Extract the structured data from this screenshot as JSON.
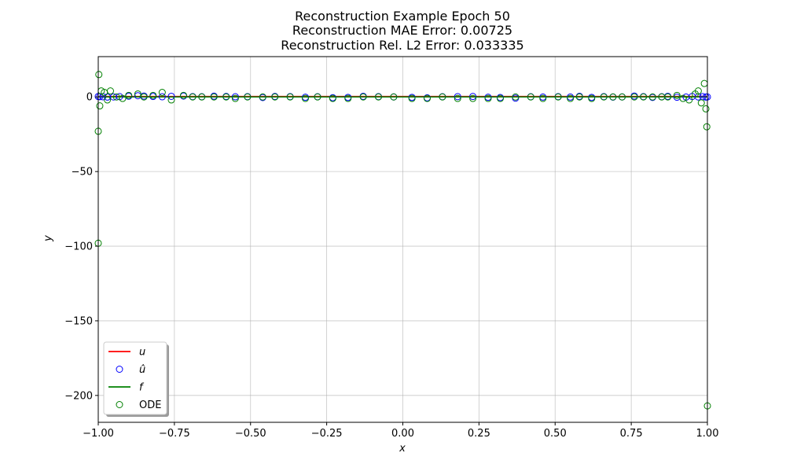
{
  "chart_data": {
    "type": "scatter",
    "title_lines": [
      "Reconstruction Example Epoch 50",
      "Reconstruction MAE Error: 0.00725",
      "Reconstruction Rel. L2 Error: 0.033335"
    ],
    "xlabel": "x",
    "ylabel": "y",
    "xlim": [
      -1.0,
      1.0
    ],
    "ylim": [
      -218,
      27
    ],
    "x_ticks": [
      -1.0,
      -0.75,
      -0.5,
      -0.25,
      0.0,
      0.25,
      0.5,
      0.75,
      1.0
    ],
    "x_tick_labels": [
      "−1.00",
      "−0.75",
      "−0.50",
      "−0.25",
      "0.00",
      "0.25",
      "0.50",
      "0.75",
      "1.00"
    ],
    "y_ticks": [
      0,
      -50,
      -100,
      -150,
      -200
    ],
    "y_tick_labels": [
      "0",
      "−50",
      "−100",
      "−150",
      "−200"
    ],
    "grid": true,
    "legend_position": "lower-left",
    "legend": [
      {
        "label": "u",
        "kind": "line",
        "color": "#ff0000"
      },
      {
        "label": "û",
        "kind": "marker",
        "color": "#0000ff"
      },
      {
        "label": "f",
        "kind": "line",
        "color": "#008000"
      },
      {
        "label": "ODE",
        "kind": "marker",
        "color": "#008000"
      }
    ],
    "series": [
      {
        "name": "u",
        "kind": "line",
        "color": "#ff0000",
        "x": [
          -1.0,
          1.0
        ],
        "y": [
          0.3,
          0.3
        ]
      },
      {
        "name": "f",
        "kind": "line",
        "color": "#008000",
        "x": [
          -1.0,
          1.0
        ],
        "y": [
          0.0,
          0.0
        ]
      },
      {
        "name": "û",
        "kind": "scatter",
        "color": "#0000ff",
        "x": [
          -1.0,
          -0.995,
          -0.985,
          -0.97,
          -0.95,
          -0.93,
          -0.9,
          -0.87,
          -0.85,
          -0.82,
          -0.79,
          -0.76,
          -0.72,
          -0.69,
          -0.66,
          -0.62,
          -0.58,
          -0.55,
          -0.51,
          -0.46,
          -0.42,
          -0.37,
          -0.32,
          -0.28,
          -0.23,
          -0.18,
          -0.13,
          -0.08,
          -0.03,
          0.03,
          0.08,
          0.13,
          0.18,
          0.23,
          0.28,
          0.32,
          0.37,
          0.42,
          0.46,
          0.51,
          0.55,
          0.58,
          0.62,
          0.66,
          0.69,
          0.72,
          0.76,
          0.79,
          0.82,
          0.85,
          0.87,
          0.9,
          0.93,
          0.95,
          0.97,
          0.985,
          0.995,
          1.0
        ],
        "y": [
          0.3,
          0.2,
          0.1,
          -0.1,
          0.0,
          0.2,
          0.5,
          0.8,
          0.6,
          0.3,
          0.1,
          0.4,
          0.6,
          0.2,
          0.1,
          0.5,
          0.3,
          0.1,
          0.2,
          -0.4,
          0.3,
          0.2,
          -0.2,
          0.1,
          -0.5,
          -0.3,
          0.4,
          0.2,
          0.0,
          -0.3,
          -0.6,
          0.1,
          0.2,
          0.3,
          -0.2,
          -0.4,
          -0.8,
          0.1,
          -0.1,
          0.2,
          -0.1,
          0.4,
          -0.3,
          0.2,
          -0.1,
          0.0,
          0.6,
          0.2,
          -0.3,
          0.1,
          0.4,
          -0.2,
          -0.1,
          0.3,
          0.0,
          0.2,
          -0.1,
          0.0
        ]
      },
      {
        "name": "ODE",
        "kind": "scatter",
        "color": "#008000",
        "x": [
          -1.0,
          -1.0,
          -0.998,
          -0.995,
          -0.99,
          -0.98,
          -0.97,
          -0.96,
          -0.94,
          -0.92,
          -0.9,
          -0.87,
          -0.85,
          -0.82,
          -0.79,
          -0.76,
          -0.72,
          -0.69,
          -0.66,
          -0.62,
          -0.58,
          -0.55,
          -0.51,
          -0.46,
          -0.42,
          -0.37,
          -0.32,
          -0.28,
          -0.23,
          -0.18,
          -0.13,
          -0.08,
          -0.03,
          0.03,
          0.08,
          0.13,
          0.18,
          0.23,
          0.28,
          0.32,
          0.37,
          0.42,
          0.46,
          0.51,
          0.55,
          0.58,
          0.62,
          0.66,
          0.69,
          0.72,
          0.76,
          0.79,
          0.82,
          0.85,
          0.87,
          0.9,
          0.92,
          0.94,
          0.96,
          0.97,
          0.98,
          0.99,
          0.995,
          0.998,
          1.0
        ],
        "y": [
          -98,
          -23,
          15,
          -6,
          4,
          3,
          -2,
          4,
          0,
          -1,
          1,
          2,
          0,
          1,
          3,
          -2,
          1,
          0,
          0,
          0,
          0,
          -1,
          0,
          0,
          0,
          0,
          -1,
          0,
          -1,
          -1,
          0,
          0,
          0,
          -1,
          -1,
          0,
          -1,
          -1,
          -1,
          -1,
          0,
          0,
          -1,
          0,
          -1,
          0,
          -1,
          0,
          0,
          0,
          0,
          0,
          0,
          0,
          0,
          1,
          -1,
          -2,
          2,
          4,
          -4,
          9,
          -8,
          -20,
          -207
        ]
      }
    ]
  }
}
